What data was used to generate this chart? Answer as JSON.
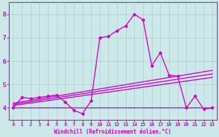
{
  "xlabel": "Windchill (Refroidissement éolien,°C)",
  "background_color": "#cce8e8",
  "grid_color": "#aacccc",
  "line_color": "#cc00cc",
  "xlim": [
    -0.5,
    23.5
  ],
  "ylim": [
    3.5,
    8.5
  ],
  "yticks": [
    4,
    5,
    6,
    7,
    8
  ],
  "xticks": [
    0,
    1,
    2,
    3,
    4,
    5,
    6,
    7,
    8,
    9,
    10,
    11,
    12,
    13,
    14,
    15,
    16,
    17,
    18,
    19,
    20,
    21,
    22,
    23
  ],
  "series": [
    {
      "x": [
        0,
        23
      ],
      "y": [
        4.0,
        4.0
      ],
      "marker": false,
      "lw": 1.0
    },
    {
      "x": [
        0,
        23
      ],
      "y": [
        4.1,
        5.3
      ],
      "marker": false,
      "lw": 1.0
    },
    {
      "x": [
        0,
        23
      ],
      "y": [
        4.15,
        5.45
      ],
      "marker": false,
      "lw": 1.0
    },
    {
      "x": [
        0,
        23
      ],
      "y": [
        4.2,
        5.6
      ],
      "marker": false,
      "lw": 1.0
    },
    {
      "x": [
        0,
        1,
        2,
        3,
        4,
        5,
        6,
        7,
        8,
        9,
        10,
        11,
        12,
        13,
        14,
        15,
        16,
        17,
        18,
        19,
        20,
        21,
        22,
        23
      ],
      "y": [
        4.0,
        4.45,
        4.4,
        4.45,
        4.5,
        4.55,
        4.25,
        3.9,
        3.75,
        4.3,
        7.0,
        7.05,
        7.3,
        7.5,
        8.0,
        7.75,
        5.8,
        6.35,
        5.4,
        5.35,
        4.0,
        4.5,
        3.95,
        4.0
      ],
      "marker": true,
      "lw": 1.0
    }
  ]
}
